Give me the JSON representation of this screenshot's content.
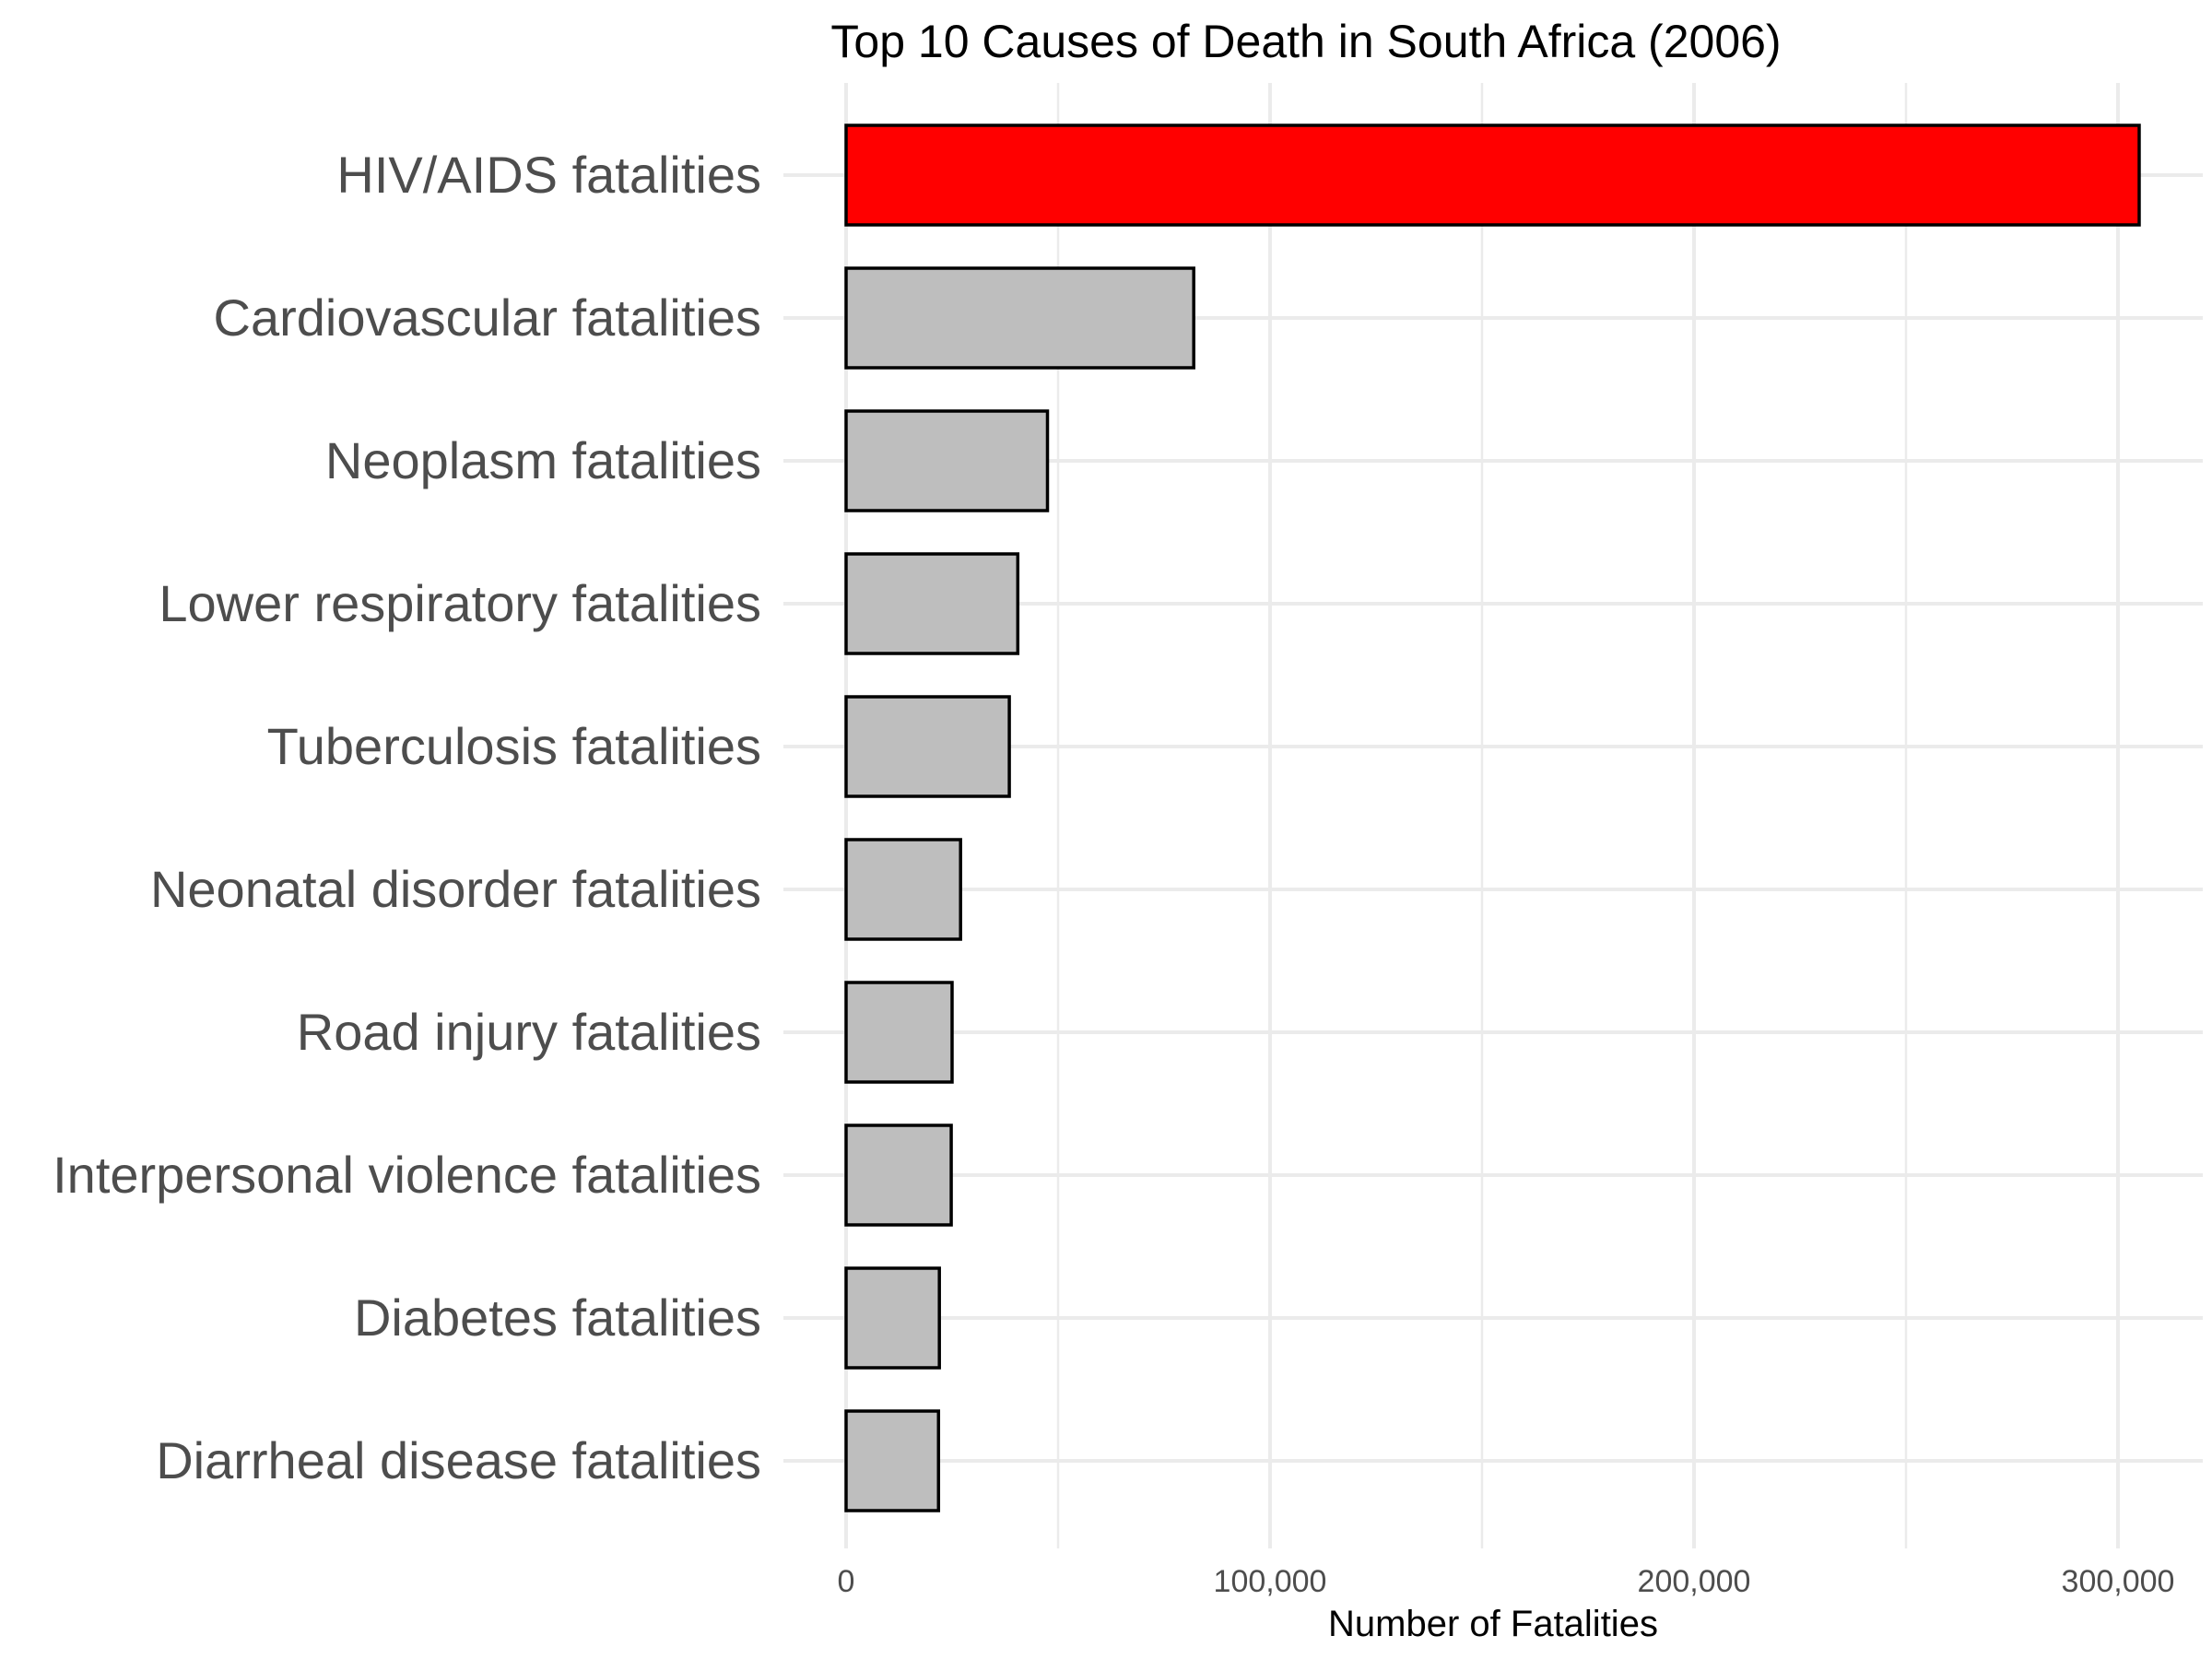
{
  "chart_data": {
    "type": "bar",
    "orientation": "horizontal",
    "title": "Top 10 Causes of Death in South Africa (2006)",
    "xlabel": "Number of Fatalities",
    "ylabel": "",
    "xlim": [
      0,
      320000
    ],
    "xticks": [
      0,
      100000,
      200000,
      300000
    ],
    "xtick_labels": [
      "0",
      "100,000",
      "200,000",
      "300,000"
    ],
    "grid": true,
    "legend": "none",
    "categories": [
      "HIV/AIDS fatalities",
      "Cardiovascular fatalities",
      "Neoplasm fatalities",
      "Lower respiratory fatalities",
      "Tuberculosis fatalities",
      "Neonatal disorder fatalities",
      "Road injury fatalities",
      "Interpersonal violence fatalities",
      "Diabetes fatalities",
      "Diarrheal disease fatalities"
    ],
    "values": [
      305000,
      82000,
      47500,
      40500,
      38500,
      27000,
      25000,
      24800,
      22000,
      21800
    ],
    "colors": [
      "#ff0000",
      "#bebebe",
      "#bebebe",
      "#bebebe",
      "#bebebe",
      "#bebebe",
      "#bebebe",
      "#bebebe",
      "#bebebe",
      "#bebebe"
    ],
    "bar_outline_color": "#000000",
    "grid_color": "#ebebeb"
  }
}
